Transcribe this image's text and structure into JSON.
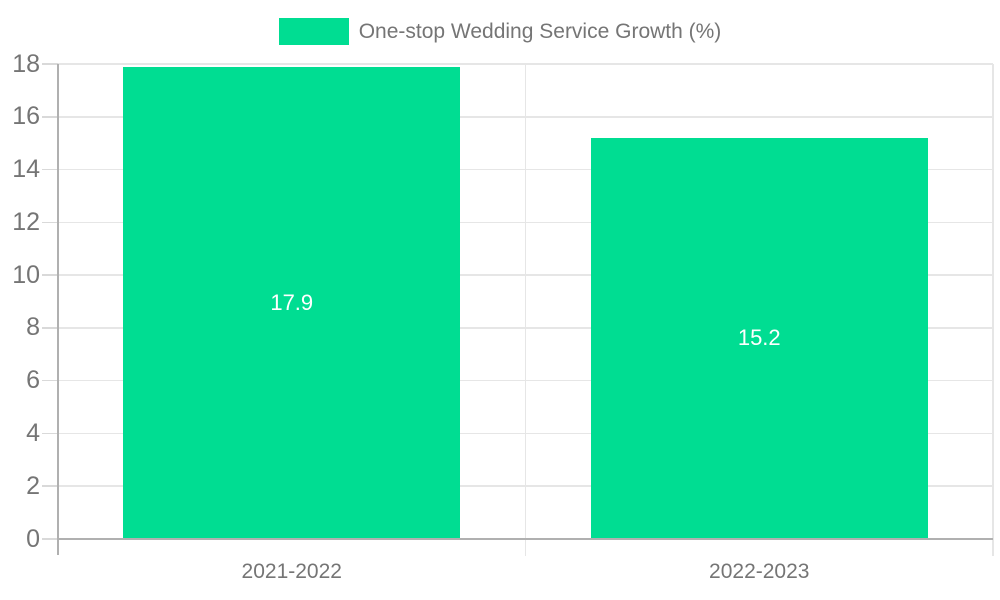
{
  "chart_data": {
    "type": "bar",
    "title": "",
    "categories": [
      "2021-2022",
      "2022-2023"
    ],
    "series": [
      {
        "name": "One-stop Wedding Service Growth (%)",
        "values": [
          17.9,
          15.2
        ]
      }
    ],
    "value_labels": [
      "17.9",
      "15.2"
    ],
    "xlabel": "",
    "ylabel": "",
    "ylim": [
      0,
      18
    ],
    "yticks": [
      0,
      2,
      4,
      6,
      8,
      10,
      12,
      14,
      16,
      18
    ],
    "ytick_labels": [
      "0",
      "2",
      "4",
      "6",
      "8",
      "10",
      "12",
      "14",
      "16",
      "18"
    ],
    "grid": true,
    "legend_position": "top-center",
    "bar_width_fraction": 0.72
  },
  "legend": {
    "label": "One-stop Wedding Service Growth (%)"
  },
  "colors": {
    "bar": "#00DD92",
    "axis_line": "#B0B0B0",
    "gridline": "#E6E6E6",
    "tick": "#D9D9D9",
    "text": "#757575",
    "value_label_text": "#FFFFFF",
    "background": "#FFFFFF"
  }
}
